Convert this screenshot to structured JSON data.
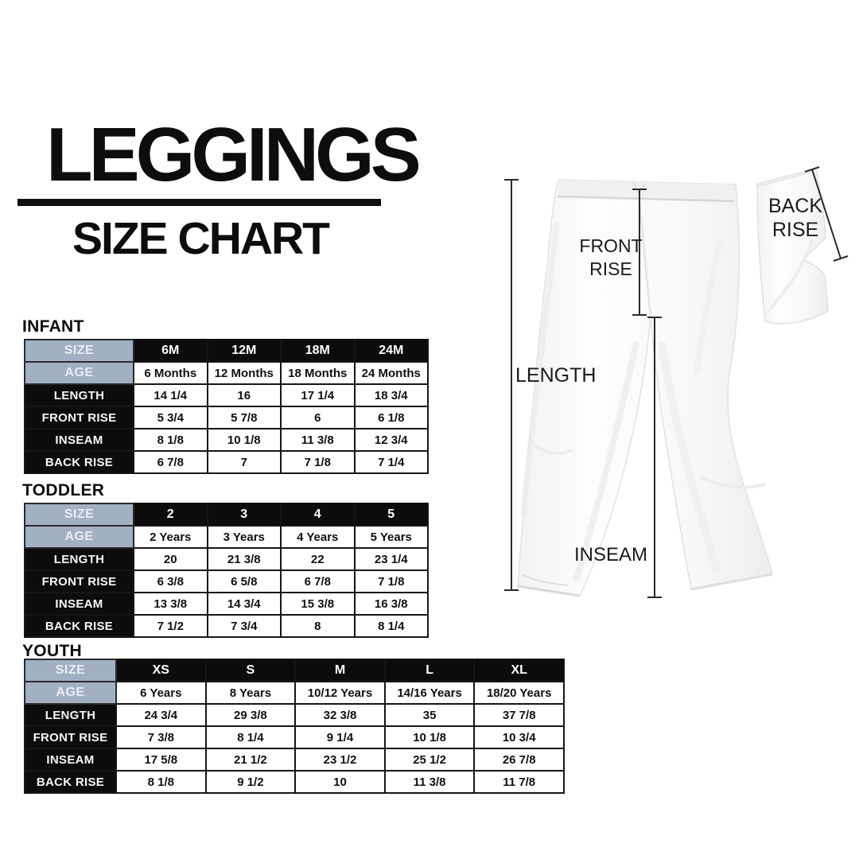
{
  "title": {
    "heading": "LEGGINGS",
    "subheading": "SIZE CHART"
  },
  "colors": {
    "header_blue": "#a2b0c3",
    "cell_black": "#0c0c0c",
    "page_background": "#ffffff",
    "text_dark": "#101010"
  },
  "illustration": {
    "length_label": "LENGTH",
    "inseam_label": "INSEAM",
    "front_rise_line1": "FRONT",
    "front_rise_line2": "RISE",
    "back_rise_line1": "BACK",
    "back_rise_line2": "RISE"
  },
  "tables": [
    {
      "section": "INFANT",
      "header_row": {
        "label": "SIZE",
        "values": [
          "6M",
          "12M",
          "18M",
          "24M"
        ]
      },
      "age_row": {
        "label": "AGE",
        "values": [
          "6 Months",
          "12 Months",
          "18 Months",
          "24 Months"
        ]
      },
      "measure_rows": [
        {
          "label": "LENGTH",
          "values": [
            "14 1/4",
            "16",
            "17 1/4",
            "18 3/4"
          ]
        },
        {
          "label": "FRONT RISE",
          "values": [
            "5 3/4",
            "5 7/8",
            "6",
            "6 1/8"
          ]
        },
        {
          "label": "INSEAM",
          "values": [
            "8 1/8",
            "10 1/8",
            "11 3/8",
            "12 3/4"
          ]
        },
        {
          "label": "BACK RISE",
          "values": [
            "6 7/8",
            "7",
            "7 1/8",
            "7 1/4"
          ]
        }
      ]
    },
    {
      "section": "TODDLER",
      "header_row": {
        "label": "SIZE",
        "values": [
          "2",
          "3",
          "4",
          "5"
        ]
      },
      "age_row": {
        "label": "AGE",
        "values": [
          "2 Years",
          "3 Years",
          "4 Years",
          "5 Years"
        ]
      },
      "measure_rows": [
        {
          "label": "LENGTH",
          "values": [
            "20",
            "21 3/8",
            "22",
            "23 1/4"
          ]
        },
        {
          "label": "FRONT RISE",
          "values": [
            "6 3/8",
            "6 5/8",
            "6 7/8",
            "7 1/8"
          ]
        },
        {
          "label": "INSEAM",
          "values": [
            "13 3/8",
            "14 3/4",
            "15 3/8",
            "16 3/8"
          ]
        },
        {
          "label": "BACK RISE",
          "values": [
            "7 1/2",
            "7 3/4",
            "8",
            "8 1/4"
          ]
        }
      ]
    },
    {
      "section": "YOUTH",
      "header_row": {
        "label": "SIZE",
        "values": [
          "XS",
          "S",
          "M",
          "L",
          "XL"
        ]
      },
      "age_row": {
        "label": "AGE",
        "values": [
          "6 Years",
          "8 Years",
          "10/12 Years",
          "14/16 Years",
          "18/20 Years"
        ]
      },
      "measure_rows": [
        {
          "label": "LENGTH",
          "values": [
            "24 3/4",
            "29 3/8",
            "32 3/8",
            "35",
            "37 7/8"
          ]
        },
        {
          "label": "FRONT RISE",
          "values": [
            "7 3/8",
            "8 1/4",
            "9 1/4",
            "10 1/8",
            "10 3/4"
          ]
        },
        {
          "label": "INSEAM",
          "values": [
            "17 5/8",
            "21 1/2",
            "23 1/2",
            "25 1/2",
            "26 7/8"
          ]
        },
        {
          "label": "BACK RISE",
          "values": [
            "8 1/8",
            "9 1/2",
            "10",
            "11 3/8",
            "11 7/8"
          ]
        }
      ]
    }
  ]
}
